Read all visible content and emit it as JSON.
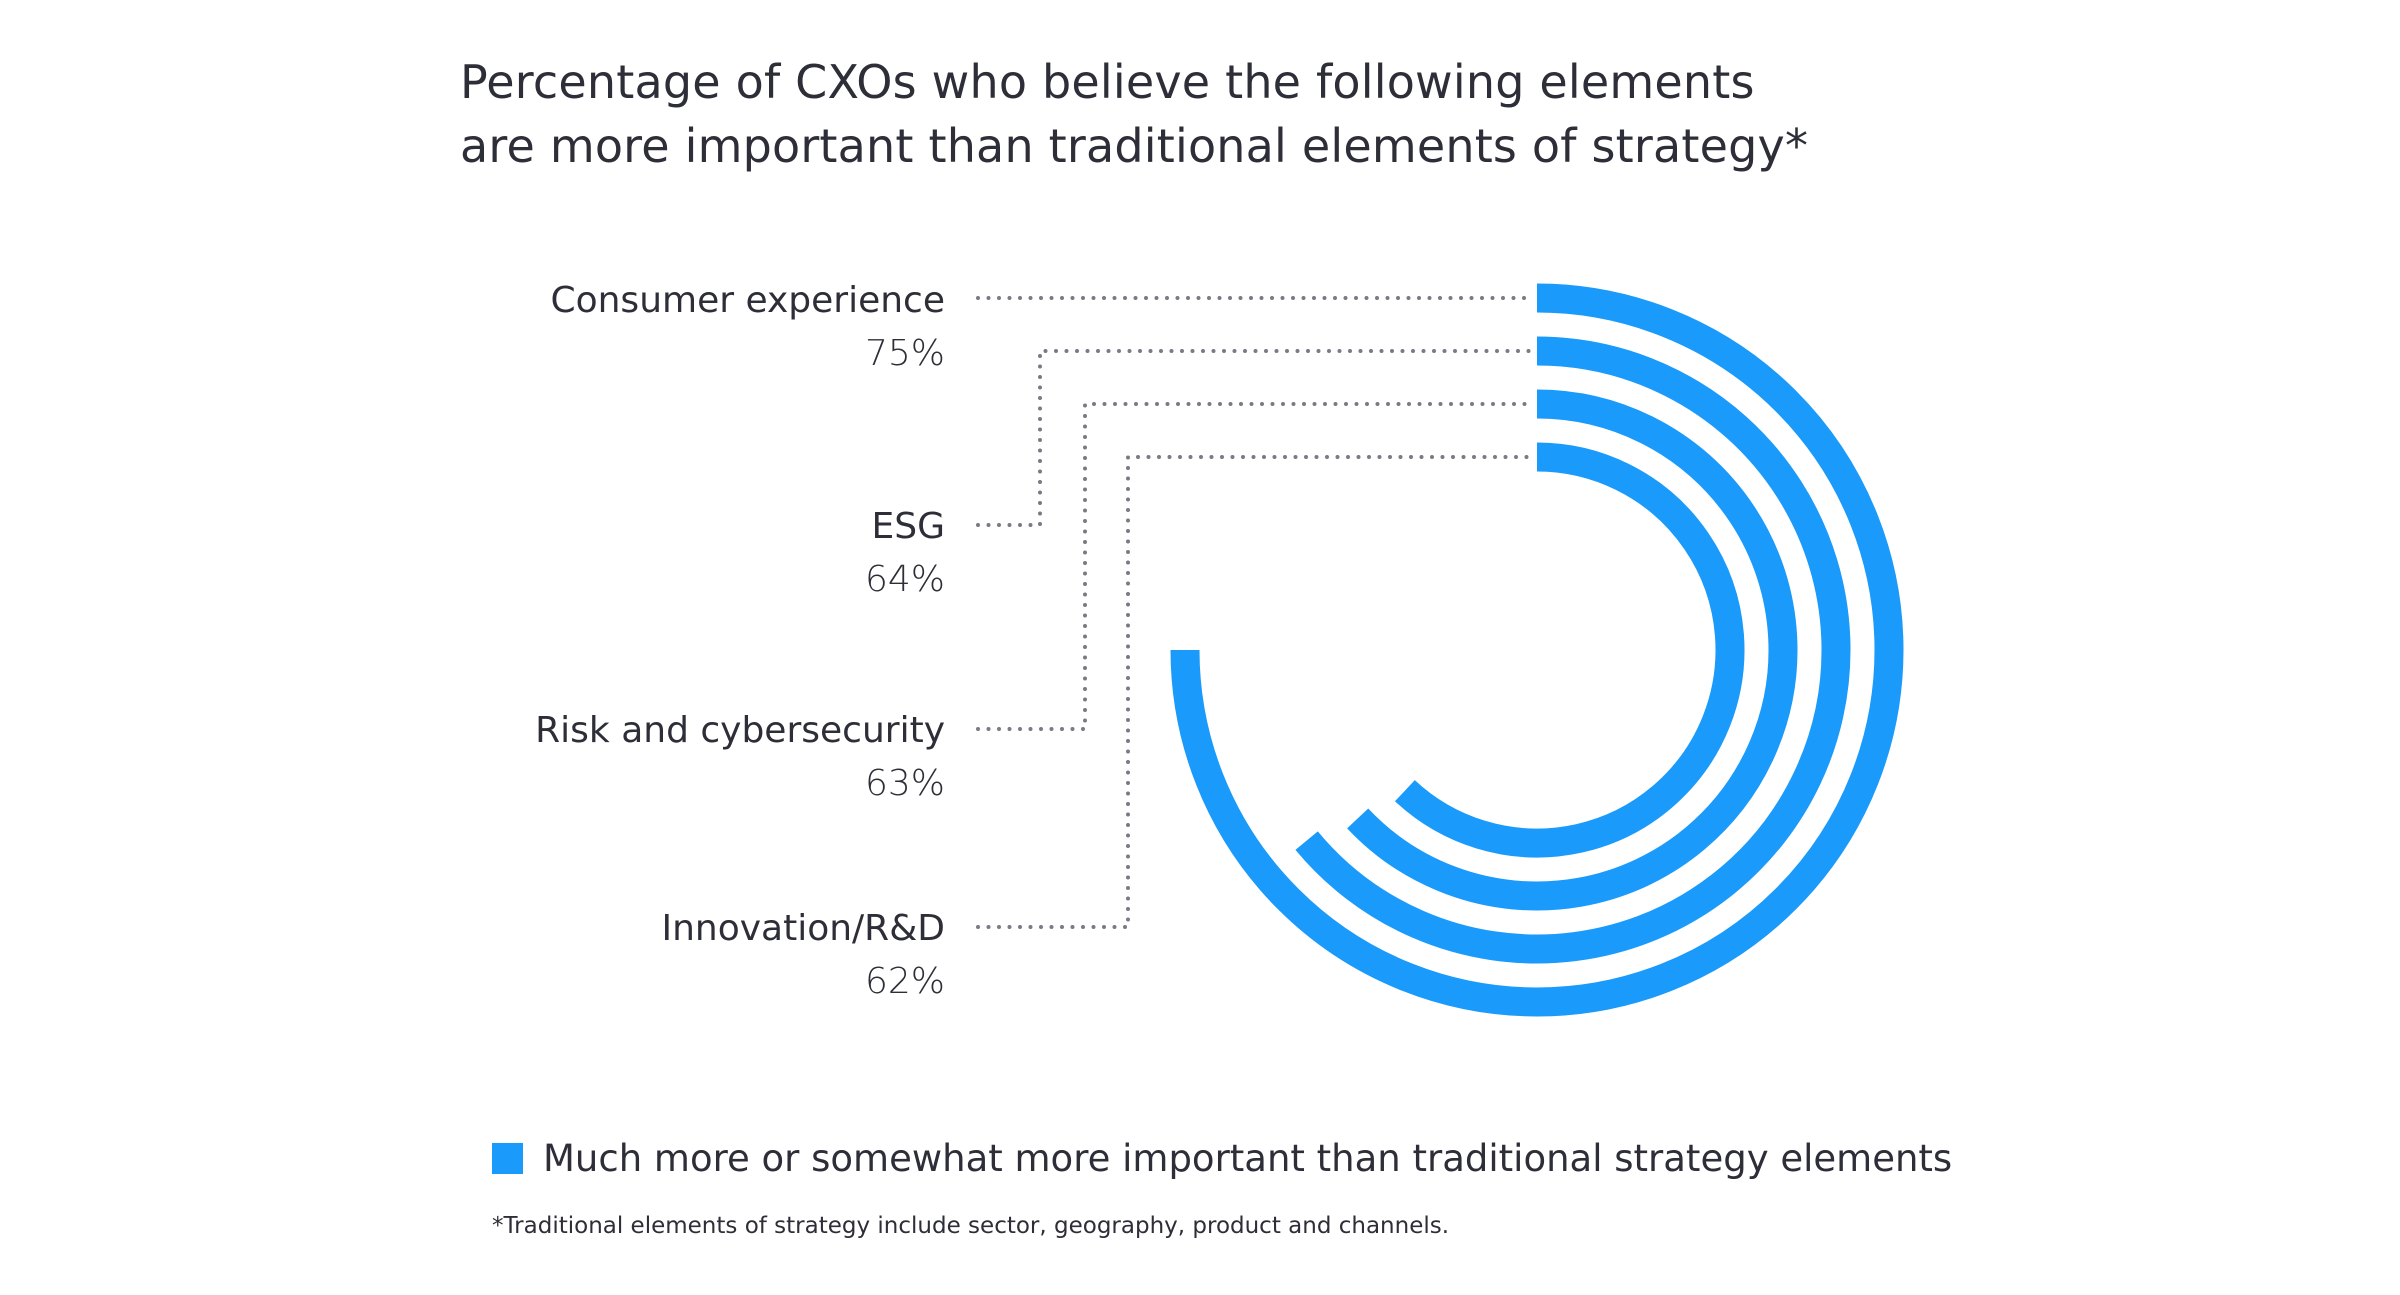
{
  "chart_data": {
    "type": "radial-bar",
    "title": "Percentage of CXOs who believe the following elements are more important than traditional elements of strategy*",
    "title_lines": [
      "Percentage of CXOs who believe the following elements",
      "are more important than traditional elements of strategy*"
    ],
    "categories": [
      "Consumer experience",
      "ESG",
      "Risk and cybersecurity",
      "Innovation/R&D"
    ],
    "values": [
      75,
      64,
      63,
      62
    ],
    "value_labels": [
      "75%",
      "64%",
      "63%",
      "62%"
    ],
    "unit": "%",
    "range": [
      0,
      100
    ],
    "series": [
      {
        "name": "Much more or somewhat more important than traditional strategy elements",
        "values": [
          75,
          64,
          63,
          62
        ],
        "color": "#1a9afa"
      }
    ],
    "legend": {
      "label": "Much more or somewhat more important than traditional strategy elements",
      "position": "bottom-left"
    },
    "footnote": "*Traditional elements of strategy include sector, geography, product and channels."
  },
  "colors": {
    "bar": "#1a9afa",
    "text": "#2e2e38",
    "leader": "#7a7a86"
  }
}
